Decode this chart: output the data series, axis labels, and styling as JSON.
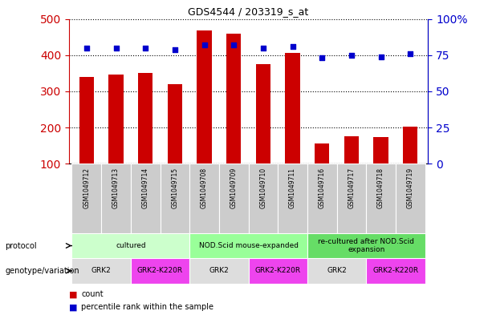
{
  "title": "GDS4544 / 203319_s_at",
  "samples": [
    "GSM1049712",
    "GSM1049713",
    "GSM1049714",
    "GSM1049715",
    "GSM1049708",
    "GSM1049709",
    "GSM1049710",
    "GSM1049711",
    "GSM1049716",
    "GSM1049717",
    "GSM1049718",
    "GSM1049719"
  ],
  "counts": [
    340,
    347,
    351,
    320,
    467,
    459,
    376,
    406,
    156,
    177,
    174,
    202
  ],
  "percentiles": [
    80,
    80,
    80,
    79,
    82,
    82,
    80,
    81,
    73,
    75,
    74,
    76
  ],
  "ylim_left": [
    100,
    500
  ],
  "ylim_right": [
    0,
    100
  ],
  "yticks_left": [
    100,
    200,
    300,
    400,
    500
  ],
  "yticks_right": [
    0,
    25,
    50,
    75,
    100
  ],
  "ytick_labels_right": [
    "0",
    "25",
    "50",
    "75",
    "100%"
  ],
  "bar_color": "#cc0000",
  "dot_color": "#0000cc",
  "bar_width": 0.5,
  "protocol_groups": [
    {
      "label": "cultured",
      "start": 0,
      "end": 3,
      "color": "#ccffcc"
    },
    {
      "label": "NOD.Scid mouse-expanded",
      "start": 4,
      "end": 7,
      "color": "#99ff99"
    },
    {
      "label": "re-cultured after NOD.Scid\nexpansion",
      "start": 8,
      "end": 11,
      "color": "#66dd66"
    }
  ],
  "genotype_groups": [
    {
      "label": "GRK2",
      "start": 0,
      "end": 1,
      "color": "#dddddd"
    },
    {
      "label": "GRK2-K220R",
      "start": 2,
      "end": 3,
      "color": "#ee44ee"
    },
    {
      "label": "GRK2",
      "start": 4,
      "end": 5,
      "color": "#dddddd"
    },
    {
      "label": "GRK2-K220R",
      "start": 6,
      "end": 7,
      "color": "#ee44ee"
    },
    {
      "label": "GRK2",
      "start": 8,
      "end": 9,
      "color": "#dddddd"
    },
    {
      "label": "GRK2-K220R",
      "start": 10,
      "end": 11,
      "color": "#ee44ee"
    }
  ],
  "legend_count_color": "#cc0000",
  "legend_dot_color": "#0000cc",
  "grid_color": "#000000",
  "axis_label_left_color": "#cc0000",
  "axis_label_right_color": "#0000cc",
  "sample_bg_color": "#cccccc"
}
